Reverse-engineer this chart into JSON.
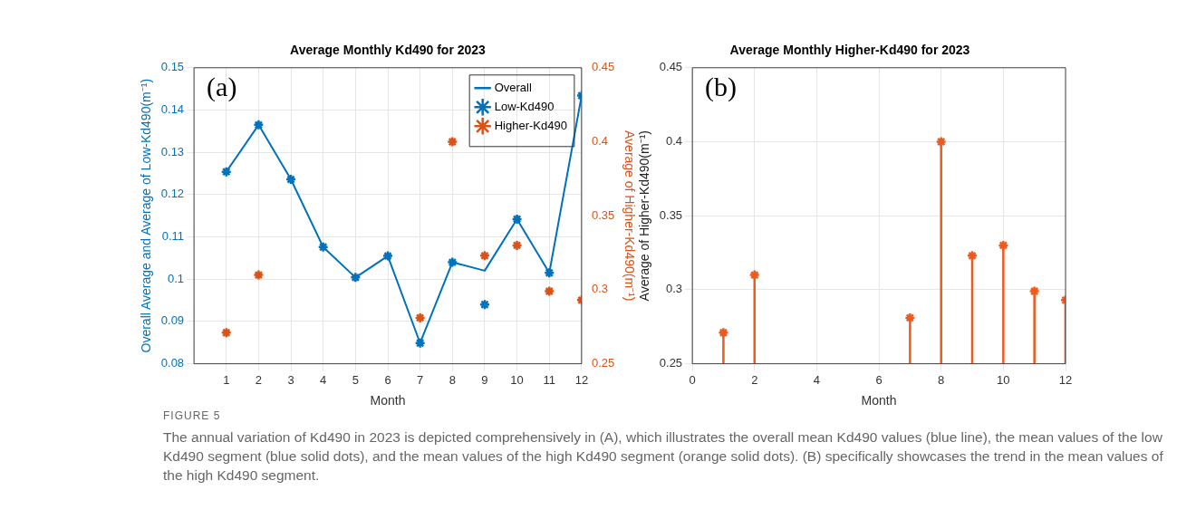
{
  "chart_data": [
    {
      "type": "line",
      "title": "Average Monthly Kd490 for 2023",
      "xlabel": "Month",
      "ylabel": "Overall Average and Average of Low-Kd490(m⁻¹)",
      "y2label": "Average of Higher-Kd490(m⁻¹)",
      "x": [
        1,
        2,
        3,
        4,
        5,
        6,
        7,
        8,
        9,
        10,
        11,
        12
      ],
      "series": [
        {
          "name": "Overall",
          "type": "line",
          "color": "#0072bd",
          "marker": "none",
          "values": [
            0.1254,
            0.1365,
            0.1236,
            0.1076,
            0.1004,
            0.1055,
            0.0849,
            0.104,
            0.102,
            0.1142,
            0.1015,
            0.1434
          ]
        },
        {
          "name": "Low-Kd490",
          "type": "scatter",
          "color": "#0072bd",
          "marker": "cross",
          "values": [
            0.1254,
            0.1365,
            0.1236,
            0.1076,
            0.1004,
            0.1055,
            0.0849,
            0.104,
            0.094,
            0.1142,
            0.1015,
            0.1434
          ]
        },
        {
          "name": "Higher-Kd490",
          "type": "scatter",
          "color": "#d95319",
          "marker": "cross",
          "axis": "y2",
          "values": [
            0.271,
            0.31,
            null,
            null,
            null,
            null,
            0.281,
            0.4,
            0.323,
            0.33,
            0.299,
            0.293
          ]
        }
      ],
      "xlim": [
        0,
        12
      ],
      "xticks": [
        1,
        2,
        3,
        4,
        5,
        6,
        7,
        8,
        9,
        10,
        11,
        12
      ],
      "ylim": [
        0.08,
        0.15
      ],
      "yticks": [
        0.08,
        0.09,
        0.1,
        0.11,
        0.12,
        0.13,
        0.14,
        0.15
      ],
      "y2lim": [
        0.25,
        0.45
      ],
      "y2ticks": [
        0.25,
        0.3,
        0.35,
        0.4,
        0.45
      ],
      "grid": true,
      "legend": "top right",
      "annotations": [
        "(a)"
      ]
    },
    {
      "type": "lollipop",
      "title": "Average Monthly Higher-Kd490 for 2023",
      "xlabel": "Month",
      "ylabel": "Average of Higher-Kd490(m⁻¹)",
      "x": [
        1,
        2,
        7,
        8,
        9,
        10,
        11,
        12
      ],
      "values": [
        0.271,
        0.31,
        0.281,
        0.4,
        0.323,
        0.33,
        0.299,
        0.293
      ],
      "color": "#ee5a1e",
      "marker": "cross",
      "xlim": [
        0,
        12
      ],
      "xticks": [
        0,
        2,
        4,
        6,
        8,
        10,
        12
      ],
      "ylim": [
        0.25,
        0.45
      ],
      "yticks": [
        0.25,
        0.3,
        0.35,
        0.4,
        0.45
      ],
      "grid": true,
      "annotations": [
        "(b)"
      ]
    },
    {
      "type": "other",
      "title": "FIGURE 5",
      "annotations": [
        "The annual variation of Kd490 in 2023 is depicted comprehensively in (A), which illustrates the overall mean Kd490 values (blue line), the mean values of the low Kd490 segment (blue solid dots), and the mean values of the high Kd490 segment (orange solid dots). (B) specifically showcases the trend in the mean values of the high Kd490 segment."
      ]
    }
  ]
}
